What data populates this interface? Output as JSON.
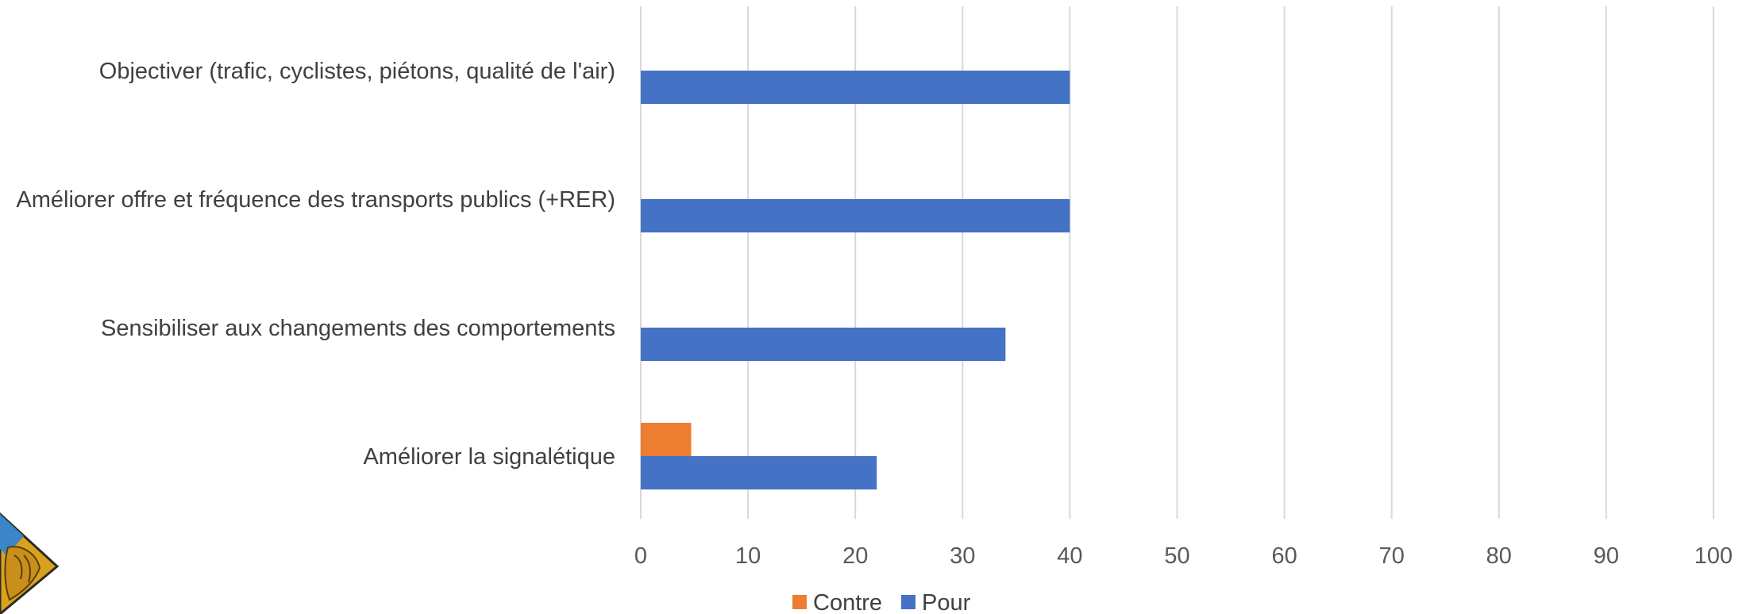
{
  "chart_data": {
    "type": "bar",
    "orientation": "horizontal",
    "categories": [
      "Objectiver (trafic, cyclistes, piétons, qualité de l'air)",
      "Améliorer offre et fréquence des transports publics (+RER)",
      "Sensibiliser aux changements des comportements",
      "Améliorer la signalétique"
    ],
    "series": [
      {
        "name": "Contre",
        "color": "#ED7D31",
        "values": [
          0,
          0,
          0,
          4.7
        ]
      },
      {
        "name": "Pour",
        "color": "#4472C4",
        "values": [
          40,
          40,
          34,
          22
        ]
      }
    ],
    "xlim": [
      0,
      100
    ],
    "xticks": [
      0,
      10,
      20,
      30,
      40,
      50,
      60,
      70,
      80,
      90,
      100
    ],
    "grid": "vertical",
    "legend": "bottom-center"
  },
  "colors": {
    "gridline": "#D9D9D9",
    "logo_blue": "#3A86C8",
    "logo_gold": "#D9A21B"
  }
}
